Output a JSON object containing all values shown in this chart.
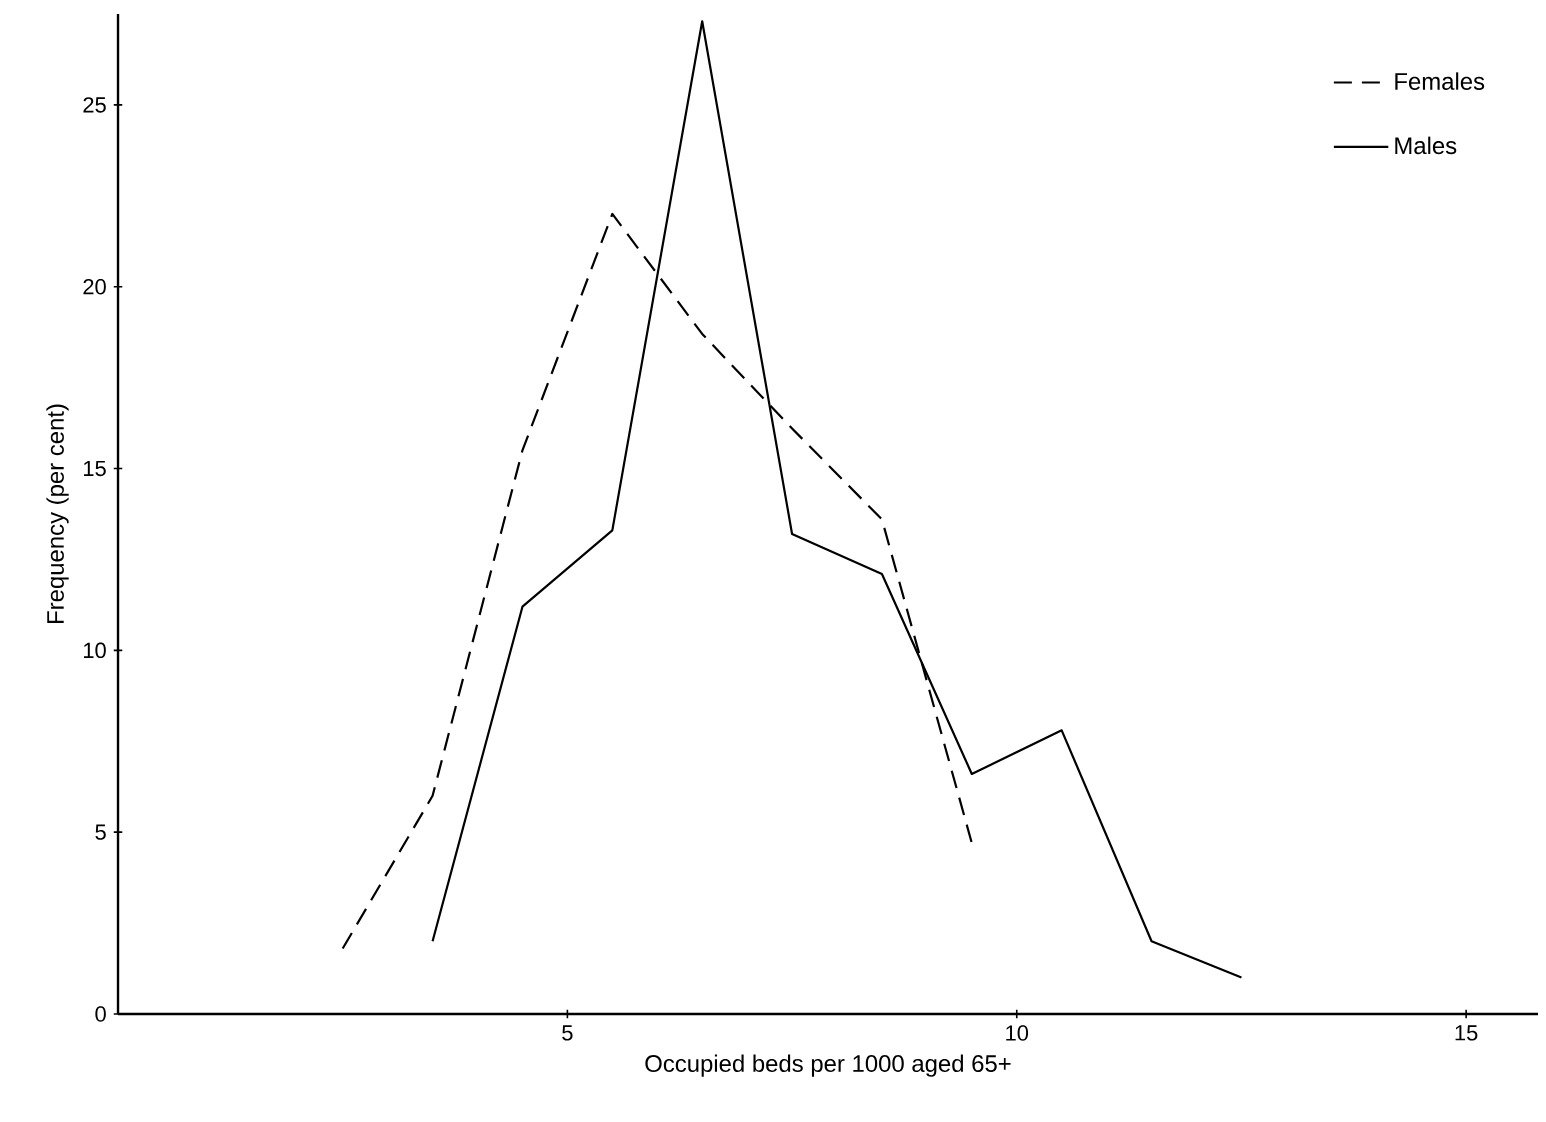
{
  "chart_data": {
    "type": "line",
    "xlabel": "Occupied beds per 1000 aged 65+",
    "ylabel": "Frequency (per cent)",
    "xlim": [
      0,
      15.8
    ],
    "ylim": [
      0,
      27.5
    ],
    "xticks": [
      5,
      10,
      15
    ],
    "yticks": [
      0,
      5,
      10,
      15,
      20,
      25
    ],
    "legend": "top right",
    "grid": false,
    "marker": "none",
    "series": [
      {
        "name": "Females",
        "color": "#000000",
        "line_style": "dashed",
        "x": [
          2.5,
          3.5,
          4.5,
          5.5,
          6.5,
          7.5,
          8.5,
          9.5
        ],
        "values": [
          1.8,
          6,
          15.5,
          22,
          18.7,
          16.1,
          13.6,
          4.7
        ]
      },
      {
        "name": "Males",
        "color": "#000000",
        "line_style": "solid",
        "x": [
          3.5,
          4.5,
          5.5,
          6.5,
          7.5,
          8.5,
          9.5,
          10.5,
          11.5,
          12.5
        ],
        "values": [
          2,
          11.2,
          13.3,
          27.3,
          13.2,
          12.1,
          6.6,
          7.8,
          2,
          1
        ]
      }
    ]
  }
}
